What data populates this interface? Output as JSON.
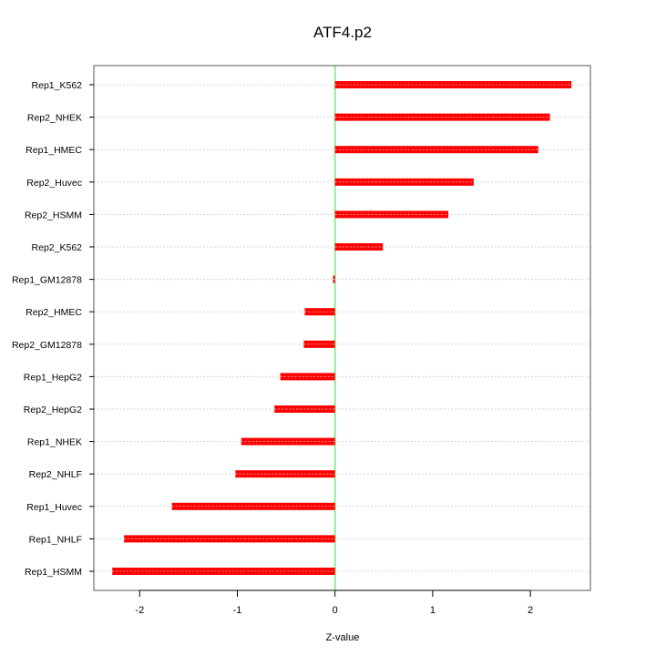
{
  "chart_data": {
    "type": "bar",
    "orientation": "horizontal",
    "title": "ATF4.p2",
    "xlabel": "Z-value",
    "ylabel": "",
    "xlim": [
      -2.5,
      2.6
    ],
    "xticks": [
      -2,
      -1,
      0,
      1,
      2
    ],
    "xtick_labels": [
      "-2",
      "-1",
      "0",
      "1",
      "2"
    ],
    "grid": "horizontal dotted",
    "categories": [
      "Rep1_K562",
      "Rep2_NHEK",
      "Rep1_HMEC",
      "Rep2_Huvec",
      "Rep2_HSMM",
      "Rep2_K562",
      "Rep1_GM12878",
      "Rep2_HMEC",
      "Rep2_GM12878",
      "Rep1_HepG2",
      "Rep2_HepG2",
      "Rep1_NHEK",
      "Rep2_NHLF",
      "Rep1_Huvec",
      "Rep1_NHLF",
      "Rep1_HSMM"
    ],
    "values": [
      2.42,
      2.2,
      2.08,
      1.42,
      1.16,
      0.49,
      -0.02,
      -0.31,
      -0.32,
      -0.56,
      -0.62,
      -0.96,
      -1.02,
      -1.67,
      -2.16,
      -2.28
    ],
    "colors": {
      "bar": "#ff0000",
      "zero_line": "#90ee90",
      "grid": "#d3d3d3"
    }
  }
}
